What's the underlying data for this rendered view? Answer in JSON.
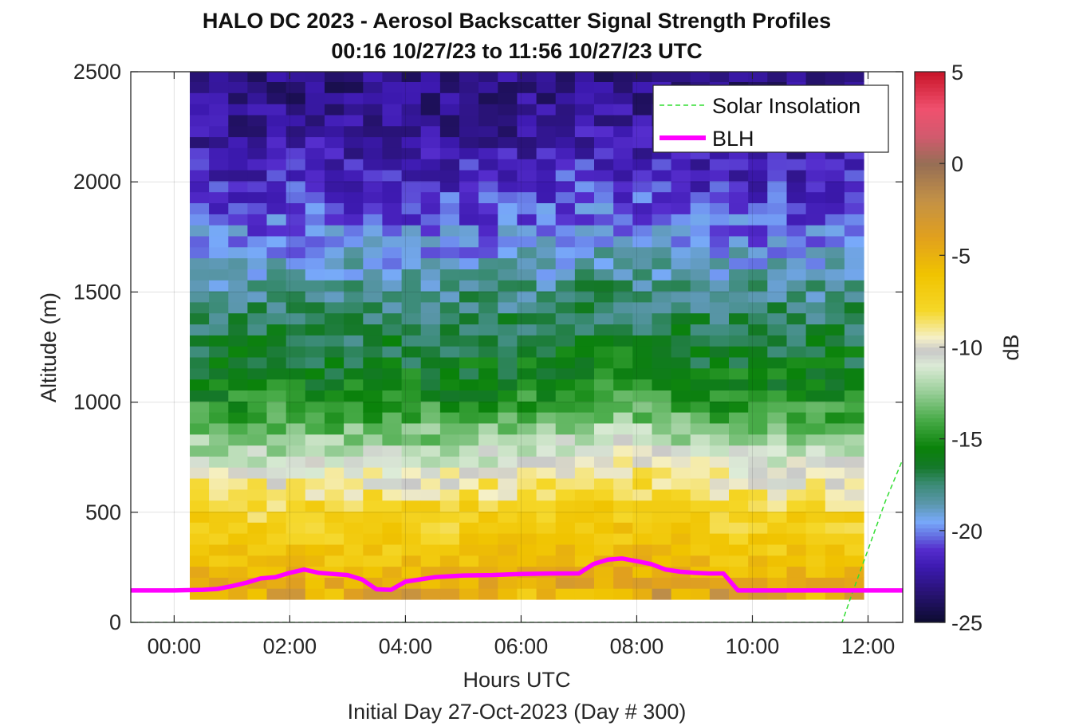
{
  "chart_data": {
    "type": "heatmap",
    "title": "HALO DC 2023 - Aerosol Backscatter Signal Strength Profiles",
    "subtitle": "00:16 10/27/23 to 11:56 10/27/23  UTC",
    "xlabel": "Hours UTC",
    "xlabel2": "Initial Day 27-Oct-2023 (Day # 300)",
    "ylabel": "Altitude (m)",
    "xlim": [
      -0.75,
      12.6
    ],
    "ylim": [
      0,
      2500
    ],
    "x_ticks": [
      0,
      2,
      4,
      6,
      8,
      10,
      12
    ],
    "x_tick_labels": [
      "00:00",
      "02:00",
      "04:00",
      "06:00",
      "08:00",
      "10:00",
      "12:00"
    ],
    "y_ticks": [
      0,
      500,
      1000,
      1500,
      2000,
      2500
    ],
    "y_tick_labels": [
      "0",
      "500",
      "1000",
      "1500",
      "2000",
      "2500"
    ],
    "grid": true,
    "colorbar": {
      "label": "dB",
      "range": [
        -25,
        5
      ],
      "ticks": [
        5,
        0,
        -5,
        -10,
        -15,
        -20,
        -25
      ],
      "tick_labels": [
        "5",
        "0",
        "-5",
        "-10",
        "-15",
        "-20",
        "-25"
      ]
    },
    "heatmap": {
      "x_start_hours": 0.27,
      "x_step_hours": 0.333,
      "y_start_m": 105,
      "y_step_m": 50,
      "columns": 35,
      "rows": 48,
      "value_units": "dB",
      "value_profile_by_altitude_m": [
        {
          "y": 120,
          "v": -4.5
        },
        {
          "y": 200,
          "v": -5.5
        },
        {
          "y": 300,
          "v": -6.5
        },
        {
          "y": 400,
          "v": -7.2
        },
        {
          "y": 500,
          "v": -7.8
        },
        {
          "y": 600,
          "v": -9.2
        },
        {
          "y": 700,
          "v": -10.8
        },
        {
          "y": 800,
          "v": -12.5
        },
        {
          "y": 900,
          "v": -14.0
        },
        {
          "y": 1000,
          "v": -15.2
        },
        {
          "y": 1200,
          "v": -16.5
        },
        {
          "y": 1400,
          "v": -17.5
        },
        {
          "y": 1600,
          "v": -19.0
        },
        {
          "y": 1800,
          "v": -20.5
        },
        {
          "y": 2000,
          "v": -21.5
        },
        {
          "y": 2200,
          "v": -22.5
        },
        {
          "y": 2400,
          "v": -23.0
        }
      ]
    },
    "series": [
      {
        "name": "Solar Insolation",
        "color": "#33dd33",
        "style": "dashed",
        "x": [
          -0.75,
          11.55,
          11.75,
          12.0,
          12.3,
          12.6
        ],
        "y": [
          0,
          0,
          150,
          330,
          550,
          740
        ]
      },
      {
        "name": "BLH",
        "color": "#ff00ff",
        "style": "solid",
        "x": [
          -0.75,
          0.0,
          0.5,
          0.75,
          1.0,
          1.25,
          1.5,
          1.75,
          2.0,
          2.25,
          2.5,
          2.75,
          3.0,
          3.25,
          3.5,
          3.75,
          4.0,
          4.5,
          5.0,
          5.5,
          6.0,
          6.5,
          7.0,
          7.25,
          7.5,
          7.75,
          8.0,
          8.25,
          8.5,
          8.75,
          9.0,
          9.25,
          9.5,
          9.75,
          10.0,
          10.5,
          11.0,
          11.5,
          12.0,
          12.6
        ],
        "y": [
          145,
          145,
          148,
          152,
          165,
          180,
          200,
          205,
          225,
          240,
          225,
          220,
          215,
          195,
          150,
          148,
          185,
          205,
          213,
          215,
          220,
          222,
          222,
          265,
          285,
          290,
          278,
          265,
          240,
          230,
          225,
          222,
          222,
          145,
          145,
          145,
          145,
          145,
          145,
          145
        ]
      }
    ],
    "legend": {
      "placement": "top-right",
      "entries": [
        "Solar Insolation",
        "BLH"
      ]
    }
  }
}
